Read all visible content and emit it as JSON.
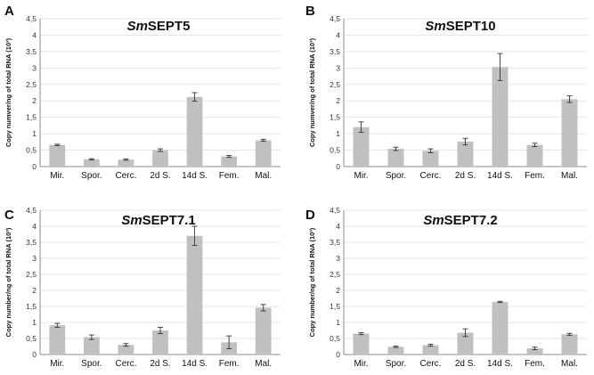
{
  "chart_data": [
    {
      "type": "bar",
      "letter": "A",
      "title_italic": "Sm",
      "title_rest": "SEPT5",
      "ylabel": "Copy numver/ng of total RNA (10³)",
      "ylim": [
        0,
        4.5
      ],
      "yticks": [
        "0",
        "0,5",
        "1",
        "1,5",
        "2",
        "2,5",
        "3",
        "3,5",
        "4",
        "4,5"
      ],
      "categories": [
        "Mir.",
        "Spor.",
        "Cerc.",
        "2d S.",
        "14d S.",
        "Fem.",
        "Mal."
      ],
      "values": [
        0.66,
        0.22,
        0.21,
        0.5,
        2.12,
        0.31,
        0.8
      ],
      "errors": [
        0.02,
        0.02,
        0.02,
        0.04,
        0.13,
        0.03,
        0.03
      ]
    },
    {
      "type": "bar",
      "letter": "B",
      "title_italic": "Sm",
      "title_rest": "SEPT10",
      "ylabel": "Copy numver/ng of total RNA (10³)",
      "ylim": [
        0,
        4.5
      ],
      "yticks": [
        "0",
        "0,5",
        "1",
        "1,5",
        "2",
        "2,5",
        "3",
        "3,5",
        "4",
        "4,5"
      ],
      "categories": [
        "Mir.",
        "Spor.",
        "Cerc.",
        "2d S.",
        "14d S.",
        "Fem.",
        "Mal."
      ],
      "values": [
        1.2,
        0.54,
        0.48,
        0.76,
        3.03,
        0.66,
        2.05
      ],
      "errors": [
        0.16,
        0.05,
        0.06,
        0.1,
        0.41,
        0.05,
        0.1
      ]
    },
    {
      "type": "bar",
      "letter": "C",
      "title_italic": "Sm",
      "title_rest": "SEPT7.1",
      "ylabel": "Copy number/ng of total RNA (10³)",
      "ylim": [
        0,
        4.5
      ],
      "yticks": [
        "0",
        "0,5",
        "1",
        "1,5",
        "2",
        "2,5",
        "3",
        "3,5",
        "4",
        "4,5"
      ],
      "categories": [
        "Mir.",
        "Spor.",
        "Cerc.",
        "2d S.",
        "14d S.",
        "Fem.",
        "Mal."
      ],
      "values": [
        0.91,
        0.54,
        0.3,
        0.75,
        3.7,
        0.38,
        1.46
      ],
      "errors": [
        0.06,
        0.07,
        0.04,
        0.1,
        0.3,
        0.2,
        0.1
      ]
    },
    {
      "type": "bar",
      "letter": "D",
      "title_italic": "Sm",
      "title_rest": "SEPT7.2",
      "ylabel": "Copy number/ng of total RNA (10³)",
      "ylim": [
        0,
        4.5
      ],
      "yticks": [
        "0",
        "0,5",
        "1",
        "1,5",
        "2",
        "2,5",
        "3",
        "3,5",
        "4",
        "4,5"
      ],
      "categories": [
        "Mir.",
        "Spor.",
        "Cerc.",
        "2d S.",
        "14d S.",
        "Fem.",
        "Mal."
      ],
      "values": [
        0.65,
        0.24,
        0.29,
        0.68,
        1.64,
        0.19,
        0.63
      ],
      "errors": [
        0.03,
        0.02,
        0.03,
        0.12,
        0.02,
        0.04,
        0.03
      ]
    }
  ],
  "colors": {
    "bar": "#c0c0c0",
    "axis": "#8c8c8c",
    "grid": "#e6e6e6",
    "error": "#333333"
  }
}
